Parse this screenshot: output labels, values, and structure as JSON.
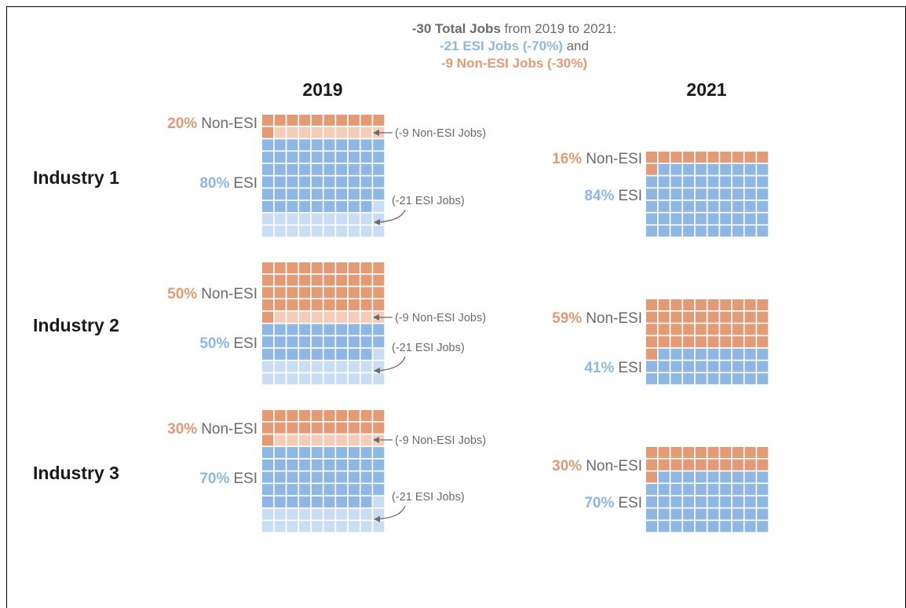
{
  "headline": {
    "line1_bold": "-30 Total Jobs",
    "line1_rest": " from 2019 to 2021:",
    "line2_esi": "-21 ESI Jobs (-70%)",
    "line2_and": " and",
    "line3_nonesi": "-9 Non-ESI Jobs (-30%)"
  },
  "colors": {
    "non_esi": "#E49A74",
    "non_esi_light": "#F3CDB8",
    "esi": "#8EB7E3",
    "esi_light": "#C9DDF3",
    "gray_text": "#6b6b6b",
    "dark_text": "#1a1a1a"
  },
  "annotations": {
    "non_esi_lost": "(-9 Non-ESI Jobs)",
    "esi_lost": "(-21 ESI Jobs)"
  },
  "chart_data": {
    "type": "waffle",
    "columns": [
      "2019",
      "2021"
    ],
    "categories": [
      "Non-ESI",
      "ESI"
    ],
    "unit": "jobs (one square = one job)",
    "industries": [
      {
        "name": "Industry 1",
        "y2019": {
          "non_esi_pct": "20%",
          "esi_pct": "80%",
          "non_esi_jobs": 20,
          "esi_jobs": 80,
          "non_esi_lost": 9,
          "esi_lost": 21
        },
        "y2021": {
          "non_esi_pct": "16%",
          "esi_pct": "84%",
          "non_esi_jobs": 11,
          "esi_jobs": 59
        }
      },
      {
        "name": "Industry 2",
        "y2019": {
          "non_esi_pct": "50%",
          "esi_pct": "50%",
          "non_esi_jobs": 50,
          "esi_jobs": 50,
          "non_esi_lost": 9,
          "esi_lost": 21
        },
        "y2021": {
          "non_esi_pct": "59%",
          "esi_pct": "41%",
          "non_esi_jobs": 41,
          "esi_jobs": 29
        }
      },
      {
        "name": "Industry 3",
        "y2019": {
          "non_esi_pct": "30%",
          "esi_pct": "70%",
          "non_esi_jobs": 30,
          "esi_jobs": 70,
          "non_esi_lost": 9,
          "esi_lost": 21
        },
        "y2021": {
          "non_esi_pct": "30%",
          "esi_pct": "70%",
          "non_esi_jobs": 21,
          "esi_jobs": 49
        }
      }
    ]
  }
}
